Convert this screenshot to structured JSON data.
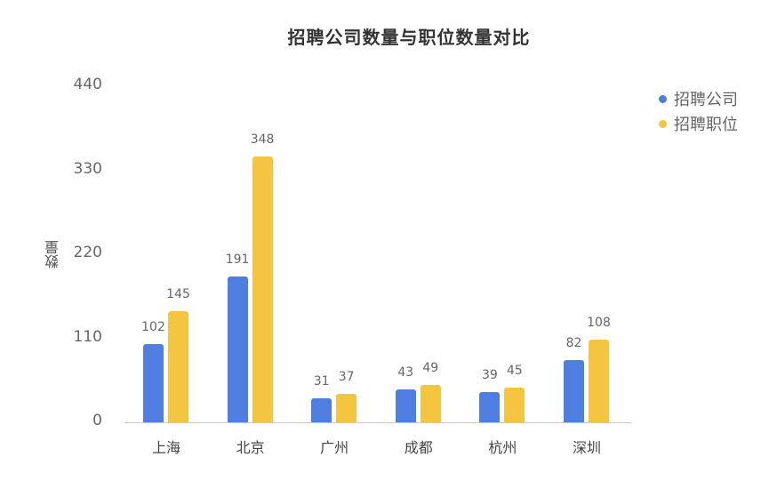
{
  "chart_data": {
    "type": "bar",
    "title": "招聘公司数量与职位数量对比",
    "xlabel": "",
    "ylabel": "数量",
    "ylim": [
      0,
      440
    ],
    "yticks": [
      0,
      110,
      220,
      330,
      440
    ],
    "grid": false,
    "legend_position": "top-right",
    "categories": [
      "上海",
      "北京",
      "广州",
      "成都",
      "杭州",
      "深圳"
    ],
    "series": [
      {
        "name": "招聘公司",
        "color": "#4e7fe0",
        "values": [
          102,
          191,
          31,
          43,
          39,
          82
        ]
      },
      {
        "name": "招聘职位",
        "color": "#f5c542",
        "values": [
          145,
          348,
          37,
          49,
          45,
          108
        ]
      }
    ]
  },
  "ytick_labels": [
    "0",
    "110",
    "220",
    "330",
    "440"
  ]
}
